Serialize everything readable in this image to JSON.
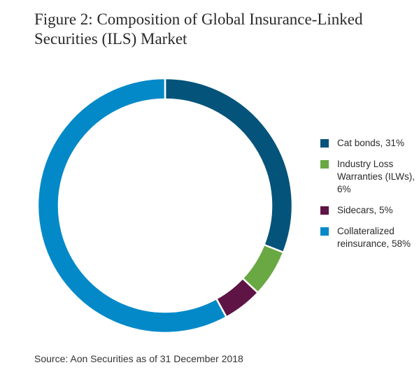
{
  "title_line1": "Figure 2: Composition of Global Insurance-Linked",
  "title_line2": "Securities (ILS) Market",
  "source": "Source: Aon Securities as of 31 December 2018",
  "chart_data": {
    "type": "pie",
    "style": "donut",
    "title": "Figure 2: Composition of Global Insurance-Linked Securities (ILS) Market",
    "legend_position": "right",
    "categories": [
      "Cat bonds",
      "Industry Loss Warranties (ILWs)",
      "Sidecars",
      "Collateralized reinsurance"
    ],
    "values": [
      31,
      6,
      5,
      58
    ],
    "unit": "%",
    "colors": [
      "#04537a",
      "#6aa843",
      "#5e1445",
      "#0489c8"
    ],
    "legend": [
      {
        "label": "Cat bonds, 31%",
        "color": "#04537a"
      },
      {
        "label": "Industry Loss Warranties (ILWs), 6%",
        "color": "#6aa843"
      },
      {
        "label": "Sidecars, 5%",
        "color": "#5e1445"
      },
      {
        "label": "Collateralized reinsurance, 58%",
        "color": "#0489c8"
      }
    ]
  }
}
